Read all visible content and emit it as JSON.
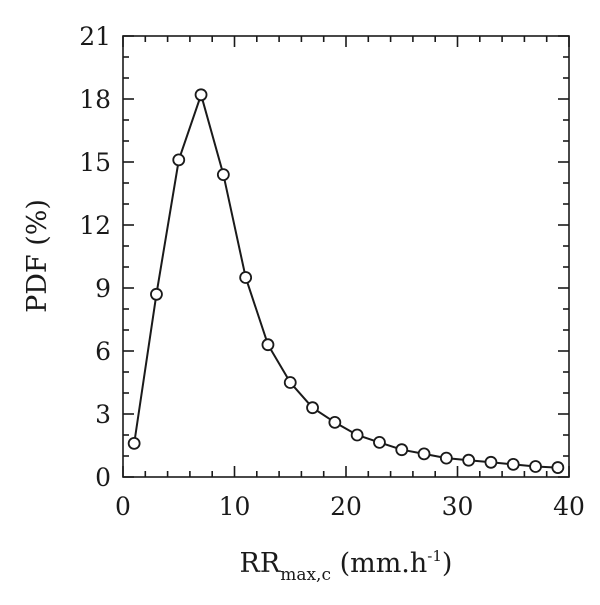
{
  "chart_data": {
    "type": "line",
    "markers": "open-circle",
    "line_color": "#1a1a1a",
    "xlabel": {
      "main": "RR",
      "subscript": "max,c",
      "unit_prefix": " (mm.h",
      "superscript": "-1",
      "unit_suffix": ")"
    },
    "ylabel": "PDF (%)",
    "xlim": [
      0,
      40
    ],
    "ylim": [
      0,
      21
    ],
    "x_ticks": [
      0,
      10,
      20,
      30,
      40
    ],
    "y_ticks": [
      0,
      3,
      6,
      9,
      12,
      15,
      18,
      21
    ],
    "x_minor_step": 2,
    "y_minor_step": 1,
    "grid": false,
    "series": [
      {
        "x": [
          1,
          3,
          5,
          7,
          9,
          11,
          13,
          15,
          17,
          19,
          21,
          23,
          25,
          27,
          29,
          31,
          33,
          35,
          37,
          39
        ],
        "y": [
          1.6,
          8.7,
          15.1,
          18.2,
          14.4,
          9.5,
          6.3,
          4.5,
          3.3,
          2.6,
          2.0,
          1.65,
          1.3,
          1.1,
          0.9,
          0.8,
          0.7,
          0.6,
          0.5,
          0.45
        ]
      }
    ]
  }
}
